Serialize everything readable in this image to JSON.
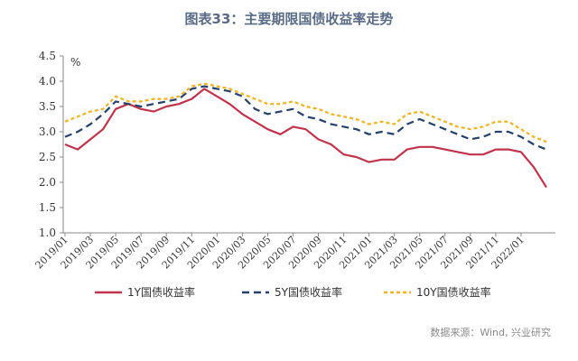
{
  "title": "图表33：主要期限国债收益率走势",
  "source": "数据来源：Wind, 兴业研究",
  "chart_data": {
    "type": "line",
    "title": "图表33：主要期限国债收益率走势",
    "ylabel": "%",
    "xlabel": "",
    "ylim": [
      1.0,
      4.5
    ],
    "yticks": [
      "4.5",
      "4.0",
      "3.5",
      "3.0",
      "2.5",
      "2.0",
      "1.5",
      "1.0"
    ],
    "xticks": [
      "2019/01",
      "2019/03",
      "2019/05",
      "2019/07",
      "2019/09",
      "2019/11",
      "2020/01",
      "2020/03",
      "2020/05",
      "2020/07",
      "2020/09",
      "2020/11",
      "2021/01",
      "2021/03",
      "2021/05",
      "2021/07",
      "2021/09",
      "2021/11",
      "2022/01"
    ],
    "grid": false,
    "legend_position": "bottom",
    "x": [
      "2019/01",
      "2019/02",
      "2019/03",
      "2019/04",
      "2019/05",
      "2019/06",
      "2019/07",
      "2019/08",
      "2019/09",
      "2019/10",
      "2019/11",
      "2019/12",
      "2020/01",
      "2020/02",
      "2020/03",
      "2020/04",
      "2020/05",
      "2020/06",
      "2020/07",
      "2020/08",
      "2020/09",
      "2020/10",
      "2020/11",
      "2020/12",
      "2021/01",
      "2021/02",
      "2021/03",
      "2021/04",
      "2021/05",
      "2021/06",
      "2021/07",
      "2021/08",
      "2021/09",
      "2021/10",
      "2021/11",
      "2021/12",
      "2022/01",
      "2022/02",
      "2022/03"
    ],
    "series": [
      {
        "name": "1Y国债收益率",
        "color": "#c0334b",
        "dash": "solid",
        "values": [
          2.75,
          2.65,
          2.85,
          3.05,
          3.45,
          3.55,
          3.45,
          3.4,
          3.5,
          3.55,
          3.65,
          3.85,
          3.7,
          3.55,
          3.35,
          3.2,
          3.05,
          2.95,
          3.1,
          3.05,
          2.85,
          2.75,
          2.55,
          2.5,
          2.4,
          2.45,
          2.45,
          2.65,
          2.7,
          2.7,
          2.65,
          2.6,
          2.55,
          2.55,
          2.65,
          2.65,
          2.6,
          2.3,
          1.9
        ]
      },
      {
        "name": "5Y国债收益率",
        "color": "#25406a",
        "dash": "8,5",
        "values": [
          2.9,
          3.0,
          3.15,
          3.35,
          3.6,
          3.55,
          3.5,
          3.55,
          3.6,
          3.65,
          3.85,
          3.9,
          3.85,
          3.8,
          3.7,
          3.45,
          3.35,
          3.4,
          3.45,
          3.3,
          3.25,
          3.15,
          3.1,
          3.05,
          2.95,
          3.0,
          2.95,
          3.15,
          3.25,
          3.15,
          3.05,
          2.95,
          2.85,
          2.9,
          3.0,
          3.0,
          2.9,
          2.75,
          2.65
        ]
      },
      {
        "name": "10Y国债收益率",
        "color": "#f0b323",
        "dash": "4,3",
        "values": [
          3.2,
          3.3,
          3.4,
          3.45,
          3.7,
          3.6,
          3.6,
          3.65,
          3.65,
          3.7,
          3.9,
          3.95,
          3.9,
          3.85,
          3.75,
          3.65,
          3.55,
          3.55,
          3.6,
          3.5,
          3.45,
          3.35,
          3.3,
          3.25,
          3.15,
          3.2,
          3.15,
          3.35,
          3.4,
          3.3,
          3.2,
          3.1,
          3.05,
          3.1,
          3.2,
          3.2,
          3.05,
          2.9,
          2.8
        ]
      }
    ]
  }
}
